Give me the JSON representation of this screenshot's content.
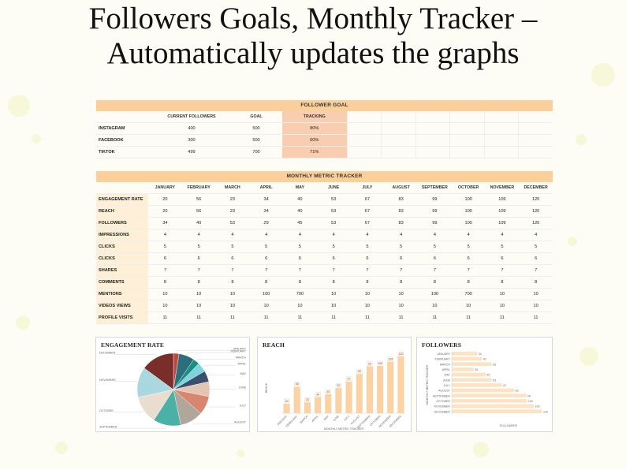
{
  "headline": {
    "line1": "Followers Goals, Monthly Tracker –",
    "line2": "Automatically updates the graphs"
  },
  "follower_goal": {
    "title": "FOLLOWER GOAL",
    "headers": [
      "",
      "CURRENT FOLLOWERS",
      "GOAL",
      "TRACKING"
    ],
    "rows": [
      {
        "platform": "INSTAGRAM",
        "current": "400",
        "goal": "500",
        "tracking": "80%"
      },
      {
        "platform": "FACEBOOK",
        "current": "300",
        "goal": "500",
        "tracking": "60%"
      },
      {
        "platform": "TIKTOK",
        "current": "499",
        "goal": "700",
        "tracking": "71%"
      }
    ]
  },
  "monthly": {
    "title": "MONTHLY METRIC TRACKER",
    "months": [
      "JANUARY",
      "FEBRUARY",
      "MARCH",
      "APRIL",
      "MAY",
      "JUNE",
      "JULY",
      "AUGUST",
      "SEPTEMBER",
      "OCTOBER",
      "NOVEMBER",
      "DECEMBER"
    ],
    "rows": [
      {
        "label": "ENGAGEMENT RATE",
        "values": [
          "20",
          "56",
          "23",
          "34",
          "40",
          "53",
          "67",
          "83",
          "99",
          "100",
          "109",
          "120"
        ]
      },
      {
        "label": "REACH",
        "values": [
          "20",
          "56",
          "23",
          "34",
          "40",
          "53",
          "67",
          "83",
          "99",
          "100",
          "109",
          "120"
        ]
      },
      {
        "label": "FOLLOWERS",
        "values": [
          "34",
          "40",
          "53",
          "29",
          "45",
          "53",
          "67",
          "83",
          "99",
          "100",
          "109",
          "120"
        ]
      },
      {
        "label": "IMPRESSIONS",
        "values": [
          "4",
          "4",
          "4",
          "4",
          "4",
          "4",
          "4",
          "4",
          "4",
          "4",
          "4",
          "4"
        ]
      },
      {
        "label": "CLICKS",
        "values": [
          "5",
          "5",
          "5",
          "5",
          "5",
          "5",
          "5",
          "5",
          "5",
          "5",
          "5",
          "5"
        ]
      },
      {
        "label": "CLICKS",
        "values": [
          "6",
          "6",
          "6",
          "6",
          "6",
          "6",
          "6",
          "6",
          "6",
          "6",
          "6",
          "6"
        ]
      },
      {
        "label": "SHARES",
        "values": [
          "7",
          "7",
          "7",
          "7",
          "7",
          "7",
          "7",
          "7",
          "7",
          "7",
          "7",
          "7"
        ]
      },
      {
        "label": "COMMENTS",
        "values": [
          "8",
          "8",
          "8",
          "8",
          "8",
          "8",
          "8",
          "8",
          "8",
          "8",
          "8",
          "8"
        ]
      },
      {
        "label": "MENTIONS",
        "values": [
          "10",
          "10",
          "10",
          "100",
          "700",
          "10",
          "10",
          "10",
          "100",
          "700",
          "10",
          "10"
        ]
      },
      {
        "label": "VIDEOS VIEWS",
        "values": [
          "10",
          "10",
          "10",
          "10",
          "10",
          "10",
          "10",
          "10",
          "10",
          "10",
          "10",
          "10"
        ]
      },
      {
        "label": "PROFILE VISITS",
        "values": [
          "11",
          "11",
          "11",
          "11",
          "11",
          "11",
          "11",
          "11",
          "11",
          "11",
          "11",
          "11"
        ]
      }
    ]
  },
  "chart_data": [
    {
      "type": "pie",
      "title": "ENGAGEMENT RATE",
      "categories": [
        "JANUARY",
        "FEBRUARY",
        "MARCH",
        "APRIL",
        "MAY",
        "JUNE",
        "JULY",
        "AUGUST",
        "SEPTEMBER",
        "OCTOBER",
        "NOVEMBER",
        "DECEMBER"
      ],
      "values": [
        20,
        56,
        23,
        34,
        40,
        53,
        67,
        83,
        99,
        100,
        109,
        120
      ],
      "colors": [
        "#c0473b",
        "#2d6e7e",
        "#1a8f7d",
        "#7fd3e0",
        "#3c4f6b",
        "#e3c5b2",
        "#d8866f",
        "#b0a79a",
        "#4bb0a5",
        "#e9ddd0",
        "#a9d8e0",
        "#7a2e2a"
      ],
      "legend": "left-right labels"
    },
    {
      "type": "bar",
      "title": "REACH",
      "xlabel": "MONTHLY METRIC TRACKER",
      "ylabel": "REACH",
      "categories": [
        "JANUARY",
        "FEBRUARY",
        "MARCH",
        "APRIL",
        "MAY",
        "JUNE",
        "JULY",
        "AUGUST",
        "SEPTEMBER",
        "OCTOBER",
        "NOVEMBER",
        "DECEMBER"
      ],
      "values": [
        20,
        56,
        23,
        34,
        40,
        53,
        67,
        83,
        99,
        100,
        109,
        120
      ],
      "ylim": [
        0,
        130
      ],
      "color": "#fbd2a4"
    },
    {
      "type": "bar",
      "orientation": "horizontal",
      "title": "FOLLOWERS",
      "xlabel": "FOLLOWERS",
      "ylabel": "MONTHLY METRIC TRACKER",
      "categories": [
        "JANUARY",
        "FEBRUARY",
        "MARCH",
        "APRIL",
        "MAY",
        "JUNE",
        "JULY",
        "AUGUST",
        "SEPTEMBER",
        "OCTOBER",
        "NOVEMBER",
        "DECEMBER"
      ],
      "values": [
        34,
        40,
        53,
        29,
        45,
        53,
        67,
        83,
        99,
        100,
        109,
        120
      ],
      "xlim": [
        0,
        130
      ],
      "color": "#fde3c3"
    }
  ]
}
